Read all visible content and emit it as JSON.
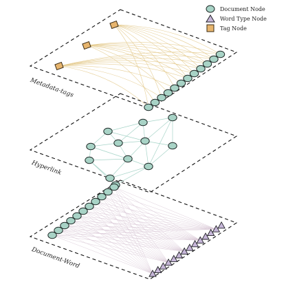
{
  "legend": {
    "document_node": "Document Node",
    "word_type_node": "Word Type Node",
    "tag_node": "Tag Node"
  },
  "layers": {
    "top": "Metadata-tags",
    "middle": "Hyperlink",
    "bottom": "Document-Word"
  },
  "colors": {
    "document_node_fill": "#a8d3c6",
    "document_node_stroke": "#1f2a28",
    "word_node_fill": "#c6b6d8",
    "word_node_stroke": "#1f1f24",
    "tag_node_fill": "#e7b56e",
    "tag_node_stroke": "#3a2a12",
    "tag_edge": "#e3c98a",
    "hyperlink_edge": "#a6d4c8",
    "doc_word_edge": "#d9c8d6",
    "plane_border": "#111111"
  }
}
